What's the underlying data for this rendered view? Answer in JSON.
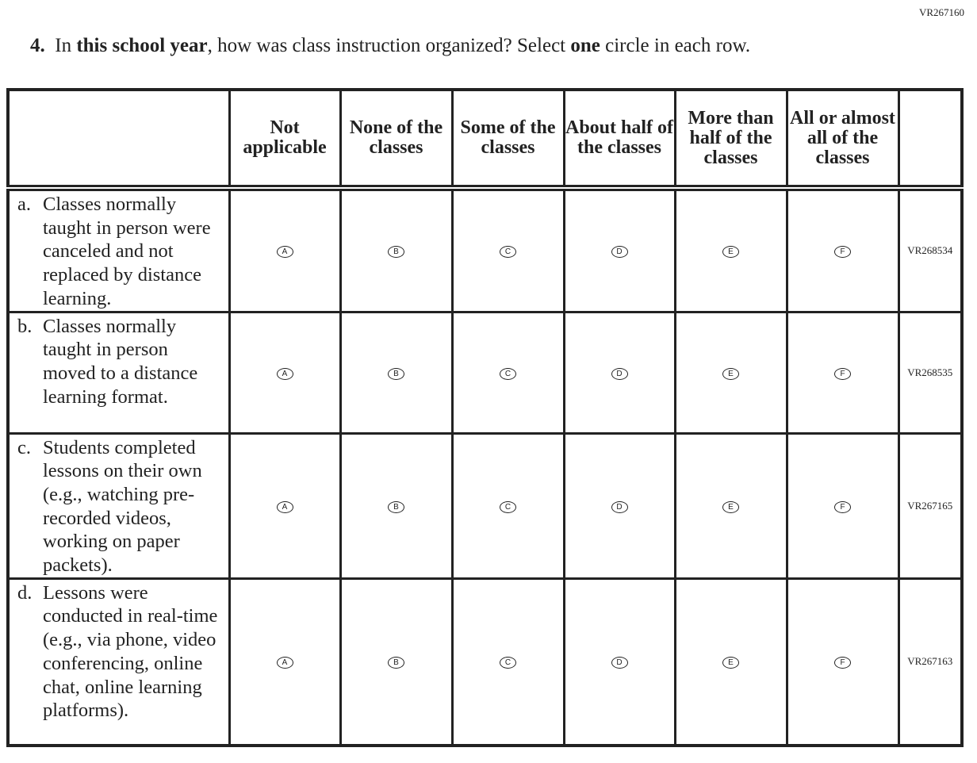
{
  "page_code": "VR267160",
  "question": {
    "number": "4.",
    "parts": [
      "In ",
      "this school year",
      ", how was class instruction organized? Select ",
      "one",
      " circle in each row."
    ]
  },
  "columns": [
    "Not applicable",
    "None of the classes",
    "Some of the classes",
    "About half of the classes",
    "More than half of the classes",
    "All or almost all of the classes"
  ],
  "rows": [
    {
      "letter": "a.",
      "text": "Classes normally taught in person were canceled and not replaced by distance learning.",
      "code": "VR268534"
    },
    {
      "letter": "b.",
      "text": "Classes normally taught in person moved to a distance learning format.",
      "code": "VR268535"
    },
    {
      "letter": "c.",
      "text": "Students completed lessons on their own (e.g., watching pre-recorded videos, working on paper packets).",
      "code": "VR267165"
    },
    {
      "letter": "d.",
      "text": "Lessons were conducted in real-time (e.g., via phone, video conferencing, online chat, online learning platforms).",
      "code": "VR267163"
    }
  ],
  "options": [
    "A",
    "B",
    "C",
    "D",
    "E",
    "F"
  ]
}
